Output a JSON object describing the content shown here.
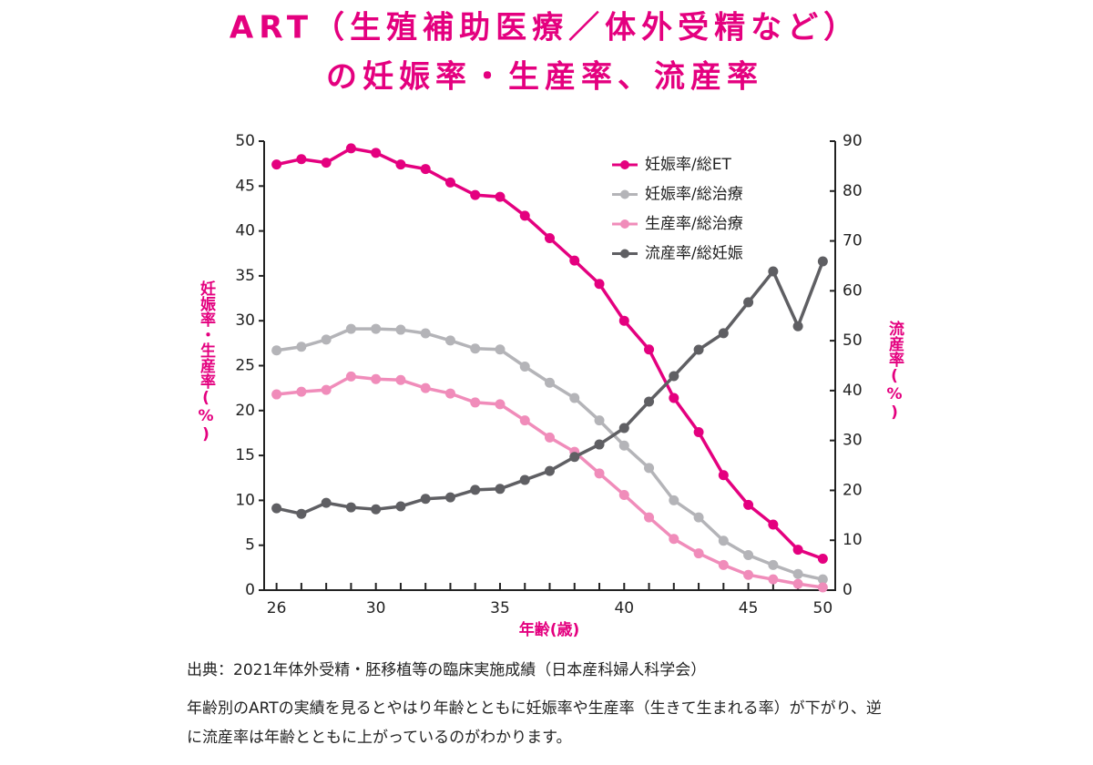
{
  "chart_data": {
    "type": "line",
    "title": [
      "ART（生殖補助医療／体外受精など）",
      "の妊娠率・生産率、流産率"
    ],
    "x_label": "年齢(歳)",
    "y_label": "妊娠率・生産率(%)",
    "y2_label": "流産率(%)",
    "categories": [
      "26",
      null,
      null,
      null,
      "30",
      null,
      null,
      null,
      null,
      "35",
      null,
      null,
      null,
      null,
      "40",
      null,
      null,
      null,
      null,
      "45",
      null,
      null,
      "50"
    ],
    "ylim": [
      0,
      50
    ],
    "yticks": [
      0,
      5,
      10,
      15,
      20,
      25,
      30,
      35,
      40,
      45,
      50
    ],
    "y2lim": [
      0,
      90
    ],
    "y2ticks": [
      0,
      10,
      20,
      30,
      40,
      50,
      60,
      70,
      80,
      90
    ],
    "legend": "upper right",
    "series": [
      {
        "name": "妊娠率/総ET",
        "color": "#e4007f",
        "values": [
          47.4,
          48.0,
          47.6,
          49.2,
          48.7,
          47.4,
          46.9,
          45.4,
          44.0,
          43.8,
          41.7,
          39.2,
          36.7,
          34.1,
          30.0,
          26.8,
          21.4,
          17.6,
          12.8,
          9.5,
          7.3,
          4.5,
          3.5
        ]
      },
      {
        "name": "妊娠率/総治療",
        "color": "#b4b4b8",
        "values": [
          26.7,
          27.1,
          27.9,
          29.1,
          29.1,
          29.0,
          28.6,
          27.8,
          26.9,
          26.8,
          24.9,
          23.1,
          21.4,
          18.9,
          16.1,
          13.6,
          10.0,
          8.1,
          5.5,
          3.9,
          2.8,
          1.8,
          1.2
        ]
      },
      {
        "name": "生産率/総治療",
        "color": "#f08cba",
        "values": [
          21.8,
          22.1,
          22.3,
          23.8,
          23.5,
          23.4,
          22.5,
          21.9,
          20.9,
          20.7,
          18.9,
          17.0,
          15.4,
          13.0,
          10.6,
          8.1,
          5.7,
          4.1,
          2.8,
          1.7,
          1.2,
          0.7,
          0.3
        ]
      },
      {
        "name": "流産率/総妊娠",
        "color": "#5f5f63",
        "axis": "y2",
        "values": [
          16.4,
          15.3,
          17.5,
          16.6,
          16.2,
          16.8,
          18.3,
          18.6,
          20.1,
          20.3,
          22.1,
          23.9,
          26.7,
          29.2,
          32.5,
          37.8,
          42.9,
          48.2,
          51.5,
          57.7,
          63.9,
          52.9,
          65.9
        ]
      }
    ]
  },
  "source": "出典：2021年体外受精・胚移植等の臨床実施成績（日本産科婦人科学会）",
  "description": "年齢別のARTの実績を見るとやはり年齢とともに妊娠率や生産率（生きて生まれる率）が下がり、逆に流産率は年齢とともに上がっているのがわかります。"
}
